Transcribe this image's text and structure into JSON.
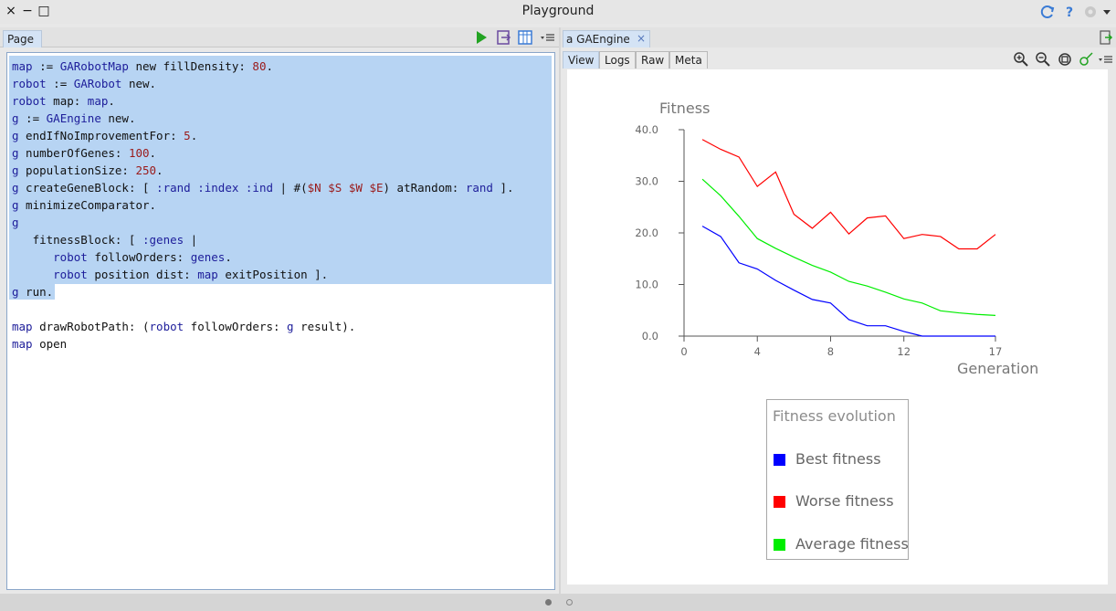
{
  "window": {
    "title": "Playground",
    "close_glyph": "×",
    "minimize_glyph": "−",
    "maximize_glyph": "□"
  },
  "left": {
    "tab_label": "Page",
    "code_lines": [
      "map := GARobotMap new fillDensity: 80.",
      "robot := GARobot new.",
      "robot map: map.",
      "g := GAEngine new.",
      "g endIfNoImprovementFor: 5.",
      "g numberOfGenes: 100.",
      "g populationSize: 250.",
      "g createGeneBlock: [ :rand :index :ind | #($N $S $W $E) atRandom: rand ].",
      "g minimizeComparator.",
      "g",
      "   fitnessBlock: [ :genes |",
      "      robot followOrders: genes.",
      "      robot position dist: map exitPosition ].",
      "g run.",
      "",
      "map drawRobotPath: (robot followOrders: g result).",
      "map open"
    ]
  },
  "right": {
    "tab_label": "a GAEngine",
    "tab_close": "×",
    "view_tabs": [
      "View",
      "Logs",
      "Raw",
      "Meta"
    ],
    "active_view_tab": "View"
  },
  "colors": {
    "best": "#0000ff",
    "worse": "#ff0000",
    "average": "#00ee00",
    "play": "#22a322",
    "accent_blue": "#3a7bd5"
  },
  "chart_data": {
    "type": "line",
    "ylabel": "Fitness",
    "xlabel": "Generation",
    "x_ticks": [
      "0",
      "4",
      "8",
      "12",
      "17"
    ],
    "y_ticks": [
      "0.0",
      "10.0",
      "20.0",
      "30.0",
      "40.0"
    ],
    "xlim": [
      0,
      17
    ],
    "ylim": [
      0,
      40
    ],
    "x": [
      1,
      2,
      3,
      4,
      5,
      6,
      7,
      8,
      9,
      10,
      11,
      12,
      13,
      14,
      15,
      16,
      17
    ],
    "legend_title": "Fitness evolution",
    "series": [
      {
        "name": "Best fitness",
        "color": "#0000ff",
        "values": [
          21.3,
          19.3,
          14.2,
          13.0,
          10.8,
          8.9,
          7.1,
          6.4,
          3.2,
          2.0,
          2.0,
          0.9,
          0.0,
          0.0,
          0.0,
          0.0,
          0.0
        ]
      },
      {
        "name": "Worse fitness",
        "color": "#ff0000",
        "values": [
          38.1,
          36.2,
          34.7,
          29.0,
          31.8,
          23.6,
          20.9,
          24.0,
          19.8,
          22.9,
          23.3,
          18.9,
          19.7,
          19.3,
          16.9,
          16.9,
          19.7
        ]
      },
      {
        "name": "Average fitness",
        "color": "#00ee00",
        "values": [
          30.4,
          27.2,
          23.2,
          18.9,
          17.0,
          15.3,
          13.7,
          12.4,
          10.6,
          9.7,
          8.5,
          7.2,
          6.4,
          4.9,
          4.5,
          4.2,
          4.0
        ]
      }
    ]
  }
}
